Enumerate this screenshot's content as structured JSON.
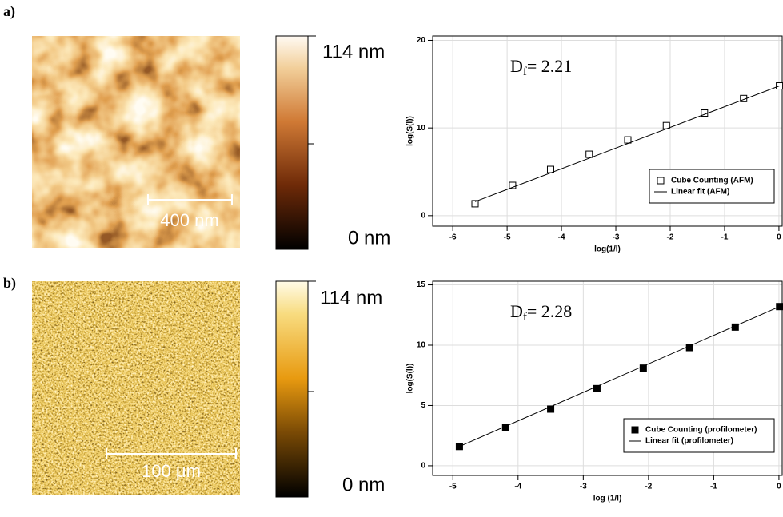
{
  "panels": [
    {
      "label": "a)",
      "scale_bar": "400 nm",
      "colorbar_max": "114 nm",
      "colorbar_min": "0 nm"
    },
    {
      "label": "b)",
      "scale_bar": "100 μm",
      "colorbar_max": "114 nm",
      "colorbar_min": "0 nm"
    }
  ],
  "chart_data": [
    {
      "type": "scatter",
      "annotation": {
        "symbol": "D",
        "subscript": "f",
        "text": "= 2.21"
      },
      "x_label": "log(1/l)",
      "y_label": "log(S(l))",
      "xlim": [
        -6.37,
        0.06
      ],
      "ylim": [
        -1.2,
        20.5
      ],
      "xticks": [
        -6,
        -5,
        -4,
        -3,
        -2,
        -1,
        0
      ],
      "yticks": [
        0,
        10,
        20
      ],
      "grid": true,
      "legend": "lower right",
      "series": [
        {
          "name": "Cube Counting (AFM)",
          "style": "markers",
          "marker": "open-square",
          "color": "#000000",
          "x": [
            -5.59,
            -4.9,
            -4.2,
            -3.49,
            -2.78,
            -2.07,
            -1.37,
            -0.65,
            0.01
          ],
          "values": [
            1.36,
            3.45,
            5.27,
            7.0,
            8.64,
            10.27,
            11.7,
            13.36,
            14.8
          ]
        },
        {
          "name": "Linear fit (AFM)",
          "style": "line",
          "color": "#000000",
          "x": [
            -5.59,
            0.01
          ],
          "values": [
            1.6,
            14.8
          ]
        }
      ]
    },
    {
      "type": "scatter",
      "annotation": {
        "symbol": "D",
        "subscript": "f",
        "text": "= 2.28"
      },
      "x_label": "log (1/l)",
      "y_label": "log(S(l))",
      "xlim": [
        -5.31,
        0.05
      ],
      "ylim": [
        -0.8,
        15.3
      ],
      "xticks": [
        -5,
        -4,
        -3,
        -2,
        -1,
        0
      ],
      "yticks": [
        0,
        5,
        10,
        15
      ],
      "grid": true,
      "legend": "lower right",
      "series": [
        {
          "name": "Cube Counting (profilometer)",
          "style": "markers",
          "marker": "filled-square",
          "color": "#000000",
          "x": [
            -4.9,
            -4.19,
            -3.5,
            -2.79,
            -2.08,
            -1.37,
            -0.67,
            0.01
          ],
          "values": [
            1.6,
            3.2,
            4.7,
            6.4,
            8.1,
            9.8,
            11.5,
            13.2
          ]
        },
        {
          "name": "Linear fit (profilometer)",
          "style": "line",
          "color": "#000000",
          "x": [
            -4.9,
            0.01
          ],
          "values": [
            1.6,
            13.2
          ]
        }
      ]
    }
  ]
}
